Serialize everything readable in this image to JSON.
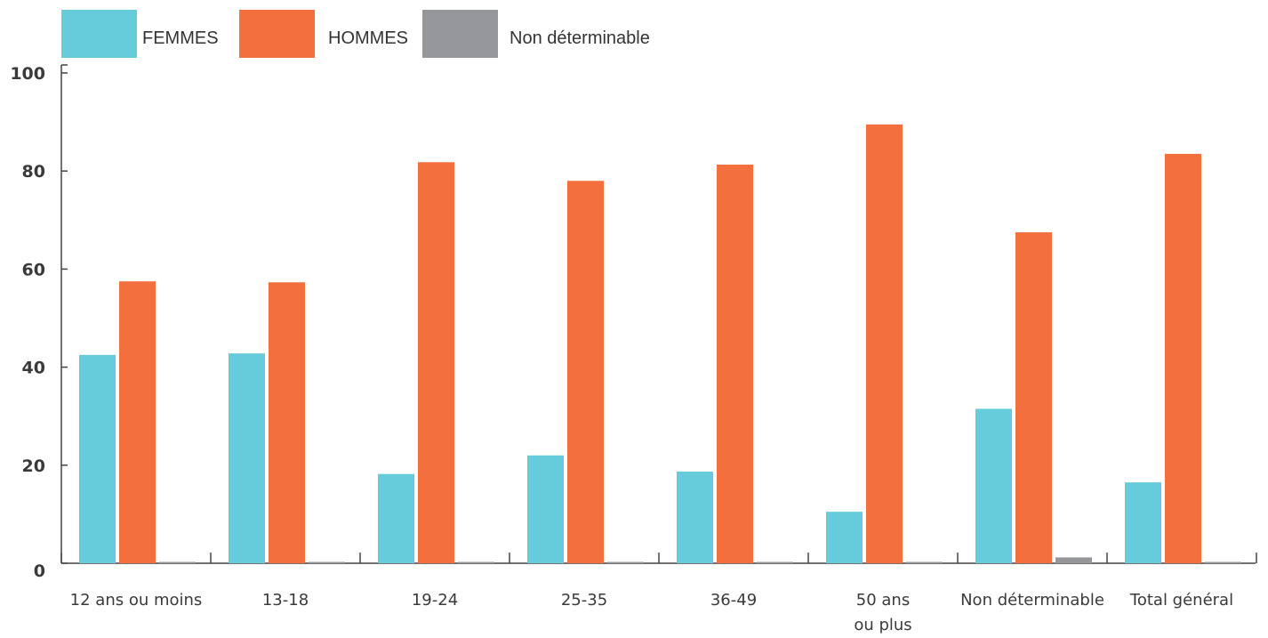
{
  "chart_data": {
    "type": "bar",
    "categories": [
      "12 ans ou moins",
      "13-18",
      "19-24",
      "25-35",
      "36-49",
      "50 ans ou plus",
      "Non déterminable",
      "Total général"
    ],
    "category_lines": [
      [
        "12 ans ou moins"
      ],
      [
        "13-18"
      ],
      [
        "19-24"
      ],
      [
        "25-35"
      ],
      [
        "36-49"
      ],
      [
        "50 ans",
        "ou plus"
      ],
      [
        "Non déterminable"
      ],
      [
        "Total général"
      ]
    ],
    "series": [
      {
        "name": "FEMMES",
        "color": "#66CCDB",
        "values": [
          42.5,
          42.8,
          18.2,
          22.0,
          18.7,
          10.5,
          31.5,
          16.5
        ]
      },
      {
        "name": "HOMMES",
        "color": "#F3703E",
        "values": [
          57.5,
          57.3,
          81.8,
          78.0,
          81.3,
          89.5,
          67.5,
          83.5
        ]
      },
      {
        "name": "Non déterminable",
        "color": "#96979B",
        "values": [
          0.1,
          0.1,
          0.1,
          0.1,
          0.1,
          0.2,
          1.2,
          0.1
        ]
      }
    ],
    "yticks": [
      0,
      20,
      40,
      60,
      80,
      100
    ],
    "ylim": [
      0,
      100
    ],
    "legend_position": "top-left",
    "grid": false
  }
}
